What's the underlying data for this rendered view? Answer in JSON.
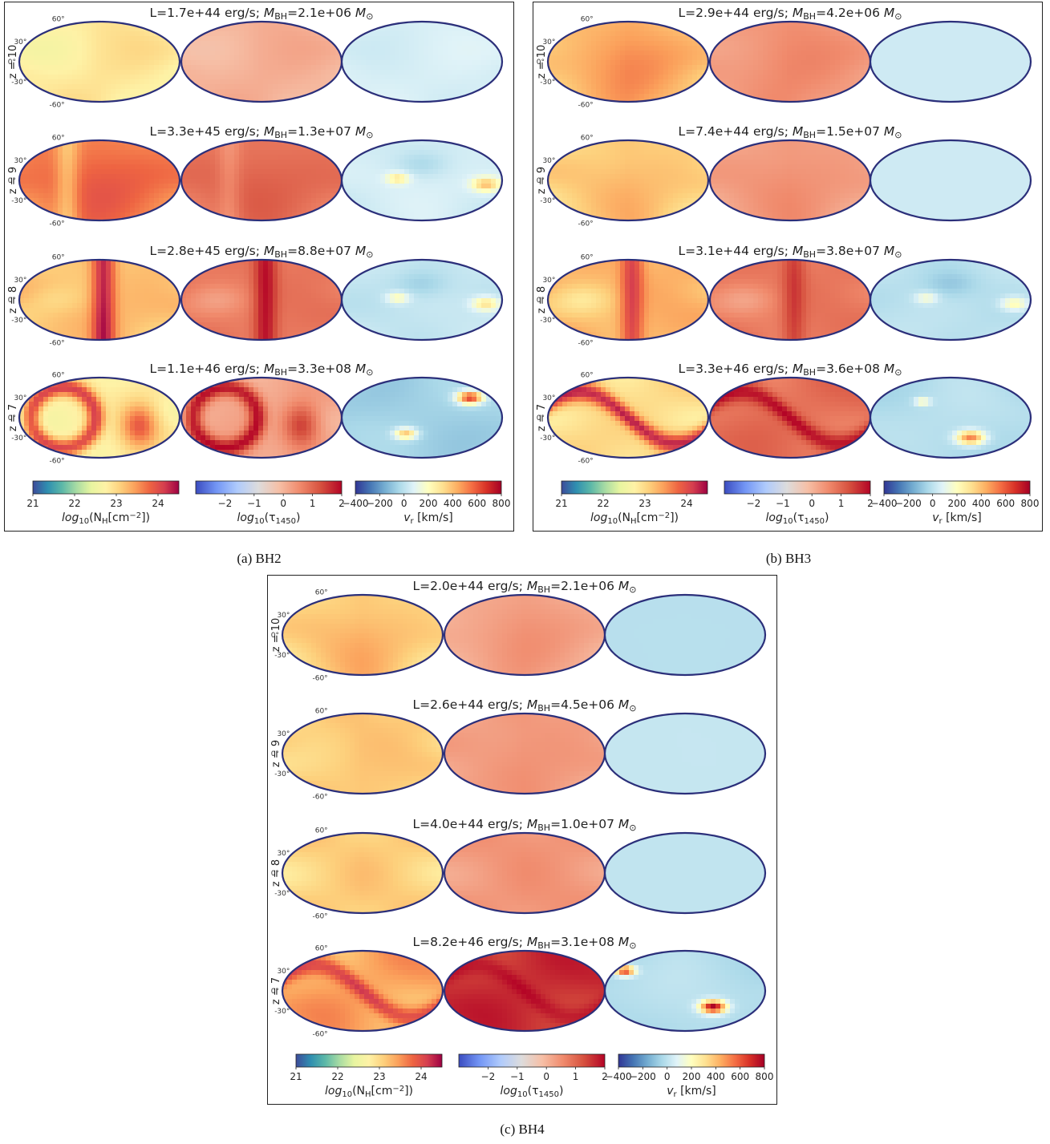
{
  "panels": [
    {
      "id": "a",
      "caption": "(a) BH2",
      "rows": [
        {
          "z": "z = 10",
          "L": "1.7e+44",
          "M": "2.1e+06",
          "nh": {
            "base": 22.9,
            "pattern": "smooth",
            "center": 0.0,
            "band_value": 0.0,
            "blob_value": 0.0
          },
          "tau": {
            "base": 0.1,
            "pattern": "smooth",
            "center": 0.0,
            "band_value": 0.0,
            "blob_value": 0.0
          },
          "vr": {
            "base": 60,
            "pattern": "smooth",
            "center": -60,
            "band_value": 0,
            "blob_value": 0
          }
        },
        {
          "z": "z = 9",
          "L": "3.3e+45",
          "M": "1.3e+07",
          "nh": {
            "base": 23.7,
            "pattern": "vband",
            "center": -0.8,
            "band_value": 23.2,
            "blob_value": 0.0
          },
          "tau": {
            "base": 0.9,
            "pattern": "vband",
            "center": -0.8,
            "band_value": 0.5,
            "blob_value": 0.0
          },
          "vr": {
            "base": 50,
            "pattern": "blob",
            "center": 0,
            "band_value": 0,
            "blob_value": 350
          }
        },
        {
          "z": "z = 8",
          "L": "2.8e+45",
          "M": "8.8e+07",
          "nh": {
            "base": 23.2,
            "pattern": "vband",
            "center": 0.1,
            "band_value": 24.3,
            "blob_value": 23.0
          },
          "tau": {
            "base": 0.8,
            "pattern": "vband",
            "center": 0.1,
            "band_value": 1.9,
            "blob_value": 0.4
          },
          "vr": {
            "base": 20,
            "pattern": "blob",
            "center": 0,
            "band_value": 0,
            "blob_value": 300
          }
        },
        {
          "z": "z = 7",
          "L": "1.1e+46",
          "M": "3.3e+08",
          "nh": {
            "base": 22.8,
            "pattern": "ring",
            "center": -0.4,
            "band_value": 24.1,
            "blob_value": 23.1
          },
          "tau": {
            "base": 0.2,
            "pattern": "ring",
            "center": -0.4,
            "band_value": 1.9,
            "blob_value": 0.4
          },
          "vr": {
            "base": -60,
            "pattern": "blob2",
            "center": 0,
            "band_value": 0,
            "blob_value": 700
          }
        }
      ]
    },
    {
      "id": "b",
      "caption": "(b) BH3",
      "rows": [
        {
          "z": "z = 10",
          "L": "2.9e+44",
          "M": "4.2e+06",
          "nh": {
            "base": 23.4,
            "pattern": "smooth",
            "center": 0.0,
            "band_value": 0.0,
            "blob_value": 0.0
          },
          "tau": {
            "base": 0.5,
            "pattern": "smooth",
            "center": 0.0,
            "band_value": 0.0,
            "blob_value": 0.0
          },
          "vr": {
            "base": 40,
            "pattern": "smooth",
            "center": 0,
            "band_value": 0,
            "blob_value": 0
          }
        },
        {
          "z": "z = 9",
          "L": "7.4e+44",
          "M": "1.5e+07",
          "nh": {
            "base": 23.2,
            "pattern": "smooth",
            "center": 0.0,
            "band_value": 0.0,
            "blob_value": 0.0
          },
          "tau": {
            "base": 0.4,
            "pattern": "smooth",
            "center": 0.0,
            "band_value": 0.0,
            "blob_value": 0.0
          },
          "vr": {
            "base": 40,
            "pattern": "smooth",
            "center": 0,
            "band_value": 0,
            "blob_value": 0
          }
        },
        {
          "z": "z = 8",
          "L": "3.1e+44",
          "M": "3.8e+07",
          "nh": {
            "base": 23.3,
            "pattern": "vband",
            "center": 0.1,
            "band_value": 24.1,
            "blob_value": 23.0
          },
          "tau": {
            "base": 0.8,
            "pattern": "vband",
            "center": 0.1,
            "band_value": 1.5,
            "blob_value": 0.4
          },
          "vr": {
            "base": 0,
            "pattern": "blob",
            "center": 0,
            "band_value": 0,
            "blob_value": 250
          }
        },
        {
          "z": "z = 7",
          "L": "3.3e+46",
          "M": "3.6e+08",
          "nh": {
            "base": 23.0,
            "pattern": "swave",
            "center": 0.0,
            "band_value": 24.3,
            "blob_value": 23.0
          },
          "tau": {
            "base": 0.9,
            "pattern": "swave",
            "center": 0.0,
            "band_value": 2.0,
            "blob_value": 0.5
          },
          "vr": {
            "base": -20,
            "pattern": "blob3",
            "center": 0,
            "band_value": 0,
            "blob_value": 550
          }
        }
      ]
    },
    {
      "id": "c",
      "caption": "(c) BH4",
      "rows": [
        {
          "z": "z = 10",
          "L": "2.0e+44",
          "M": "2.1e+06",
          "nh": {
            "base": 23.2,
            "pattern": "smooth",
            "center": 0.0,
            "band_value": 0.0,
            "blob_value": 0.0
          },
          "tau": {
            "base": 0.3,
            "pattern": "smooth",
            "center": 0.0,
            "band_value": 0.0,
            "blob_value": 0.0
          },
          "vr": {
            "base": -10,
            "pattern": "smooth",
            "center": 0,
            "band_value": 0,
            "blob_value": 0
          }
        },
        {
          "z": "z = 9",
          "L": "2.6e+44",
          "M": "4.5e+06",
          "nh": {
            "base": 23.2,
            "pattern": "smooth",
            "center": 0.0,
            "band_value": 0.0,
            "blob_value": 0.0
          },
          "tau": {
            "base": 0.4,
            "pattern": "smooth",
            "center": 0.0,
            "band_value": 0.0,
            "blob_value": 0.0
          },
          "vr": {
            "base": 20,
            "pattern": "smooth",
            "center": 0,
            "band_value": 0,
            "blob_value": 0
          }
        },
        {
          "z": "z = 8",
          "L": "4.0e+44",
          "M": "1.0e+07",
          "nh": {
            "base": 23.2,
            "pattern": "smooth",
            "center": 0.0,
            "band_value": 0.0,
            "blob_value": 0.0
          },
          "tau": {
            "base": 0.5,
            "pattern": "smooth",
            "center": 0.0,
            "band_value": 0.0,
            "blob_value": 0.0
          },
          "vr": {
            "base": 10,
            "pattern": "smooth",
            "center": 0,
            "band_value": 0,
            "blob_value": 0
          }
        },
        {
          "z": "z = 7",
          "L": "8.2e+46",
          "M": "3.1e+08",
          "nh": {
            "base": 23.4,
            "pattern": "swave",
            "center": 0.0,
            "band_value": 24.2,
            "blob_value": 23.0
          },
          "tau": {
            "base": 1.6,
            "pattern": "swave",
            "center": 0.0,
            "band_value": 2.0,
            "blob_value": 1.0
          },
          "vr": {
            "base": -20,
            "pattern": "blob4",
            "center": 0,
            "band_value": 0,
            "blob_value": 800
          }
        }
      ]
    }
  ],
  "title_template": {
    "l_prefix": "L=",
    "l_suffix": " erg/s; ",
    "m_sym": "M",
    "m_sub": "BH",
    "eq": "=",
    "msun": "M",
    "msun_sub": "⊙"
  },
  "lat_labels": [
    "60°",
    "30°",
    "0°",
    "-30°",
    "-60°"
  ],
  "colorbars": [
    {
      "name": "nh",
      "ticks": [
        "21",
        "22",
        "23",
        "24"
      ],
      "range": [
        21,
        24.5
      ],
      "label_pre": "log",
      "label_sub": "10",
      "label_post": "(N",
      "label_post_sub": "H",
      "label_tail": "[cm",
      "label_sup": "−2",
      "label_end": "])",
      "colors": [
        "#3d4b9a",
        "#2f8fb0",
        "#5cb8a8",
        "#a9dca3",
        "#e8f5a0",
        "#fef2a6",
        "#fdd07c",
        "#fba05b",
        "#ee6442",
        "#d53e4f",
        "#9e0142"
      ]
    },
    {
      "name": "tau",
      "ticks": [
        "−2",
        "−1",
        "0",
        "1",
        "2"
      ],
      "range": [
        -3,
        2
      ],
      "label_pre": "log",
      "label_sub": "10",
      "label_post": "(τ",
      "label_post_sub": "1450",
      "label_tail": ")",
      "label_sup": "",
      "label_end": "",
      "colors": [
        "#3b4cc0",
        "#7396f5",
        "#b0cbfc",
        "#dddcdc",
        "#f6bfa6",
        "#f08a6c",
        "#d6503e",
        "#b40426"
      ]
    },
    {
      "name": "vr",
      "ticks": [
        "−400",
        "−200",
        "0",
        "200",
        "400",
        "600",
        "800"
      ],
      "range": [
        -400,
        800
      ],
      "label_pre": "v",
      "label_sub": "r",
      "label_post": " [km/s]",
      "label_post_sub": "",
      "label_tail": "",
      "label_sup": "",
      "label_end": "",
      "colors": [
        "#313695",
        "#4575b4",
        "#74add1",
        "#abd9e9",
        "#e0f3f8",
        "#ffffbf",
        "#fee090",
        "#fdae61",
        "#f46d43",
        "#d73027",
        "#a50026"
      ]
    }
  ]
}
